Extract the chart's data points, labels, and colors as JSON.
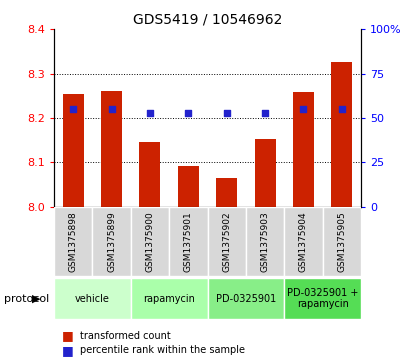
{
  "title": "GDS5419 / 10546962",
  "samples": [
    "GSM1375898",
    "GSM1375899",
    "GSM1375900",
    "GSM1375901",
    "GSM1375902",
    "GSM1375903",
    "GSM1375904",
    "GSM1375905"
  ],
  "transformed_count": [
    8.255,
    8.26,
    8.145,
    8.093,
    8.065,
    8.153,
    8.258,
    8.327
  ],
  "percentile_rank": [
    55,
    55,
    53,
    53,
    53,
    53,
    55,
    55
  ],
  "protocols": [
    {
      "label": "vehicle",
      "start": 0,
      "end": 1,
      "color": "#ccffcc"
    },
    {
      "label": "rapamycin",
      "start": 2,
      "end": 3,
      "color": "#aaffaa"
    },
    {
      "label": "PD-0325901",
      "start": 4,
      "end": 5,
      "color": "#88ee88"
    },
    {
      "label": "PD-0325901 +\nrapamycin",
      "start": 6,
      "end": 7,
      "color": "#55dd55"
    }
  ],
  "ylim_left": [
    8.0,
    8.4
  ],
  "ylim_right": [
    0,
    100
  ],
  "yticks_left": [
    8.0,
    8.1,
    8.2,
    8.3,
    8.4
  ],
  "yticks_right": [
    0,
    25,
    50,
    75,
    100
  ],
  "ytick_labels_right": [
    "0",
    "25",
    "50",
    "75",
    "100%"
  ],
  "bar_color": "#cc2200",
  "dot_color": "#2222cc",
  "sample_bg_color": "#d8d8d8",
  "legend_dot_label": "percentile rank within the sample",
  "legend_bar_label": "transformed count"
}
